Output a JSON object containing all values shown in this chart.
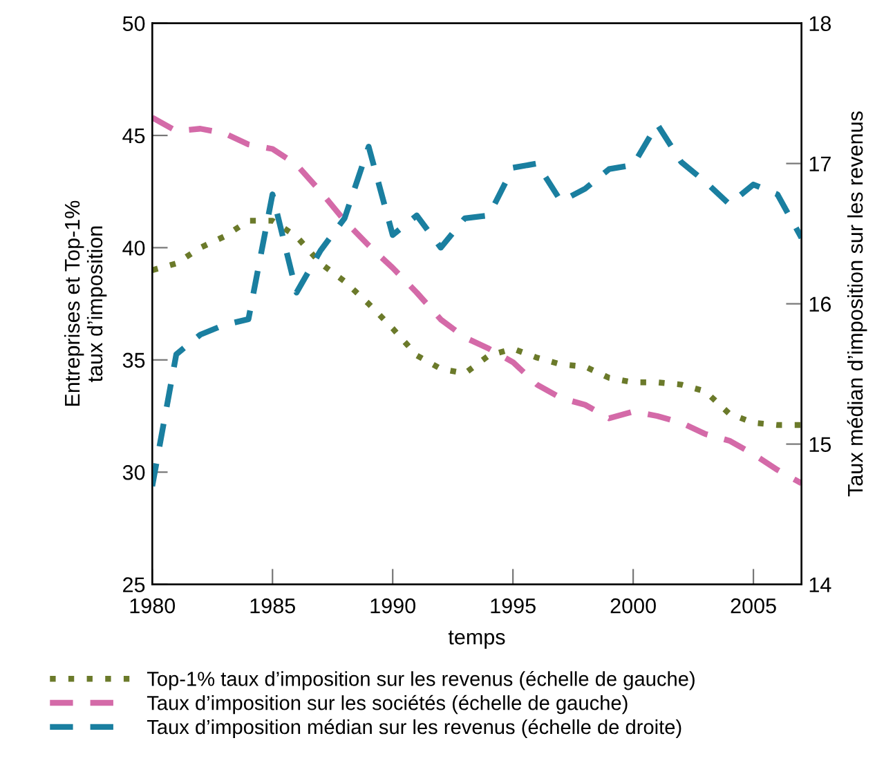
{
  "chart_data": {
    "type": "line",
    "xlabel": "temps",
    "ylabel": "Entreprises et Top-1%\ntaux d’imposition",
    "y2label": "Taux médian d’imposition sur les revenus",
    "x": [
      1980,
      1981,
      1982,
      1983,
      1984,
      1985,
      1986,
      1987,
      1988,
      1989,
      1990,
      1991,
      1992,
      1993,
      1994,
      1995,
      1996,
      1997,
      1998,
      1999,
      2000,
      2001,
      2002,
      2003,
      2004,
      2005,
      2006,
      2007
    ],
    "xlim": [
      1980,
      2007
    ],
    "xticks": [
      1980,
      1985,
      1990,
      1995,
      2000,
      2005
    ],
    "ylim": [
      25,
      50
    ],
    "yticks": [
      25,
      30,
      35,
      40,
      45,
      50
    ],
    "y2lim": [
      14,
      18
    ],
    "y2ticks": [
      14,
      15,
      16,
      17,
      18
    ],
    "grid": false,
    "legend": "bottom",
    "marker": "none",
    "series": [
      {
        "name": "Top-1% taux d’imposition sur les revenus (échelle de gauche)",
        "color": "#6b7a2a",
        "line_style": "dotted",
        "values": [
          39.0,
          39.3,
          40.0,
          40.5,
          41.2,
          41.2,
          40.5,
          39.3,
          38.5,
          37.5,
          36.4,
          35.2,
          34.6,
          34.4,
          35.2,
          35.5,
          35.1,
          34.8,
          34.7,
          34.2,
          34.0,
          34.0,
          33.9,
          33.6,
          32.6,
          32.2,
          32.1,
          32.1
        ]
      },
      {
        "name": "Taux d’imposition sur les sociétés (échelle de gauche)",
        "color": "#d46aa8",
        "line_style": "dashed",
        "values": [
          45.8,
          45.2,
          45.3,
          45.1,
          44.6,
          44.4,
          43.7,
          42.5,
          41.2,
          40.1,
          39.1,
          38.0,
          36.8,
          36.0,
          35.5,
          34.9,
          33.9,
          33.3,
          33.0,
          32.4,
          32.7,
          32.5,
          32.2,
          31.7,
          31.4,
          30.8,
          30.1,
          29.5
        ]
      },
      {
        "name": "Taux d’imposition médian sur les revenus (échelle de droite)",
        "color": "#1a7fa0",
        "line_style": "dashed",
        "axis": "y2",
        "values": [
          14.7,
          15.64,
          15.78,
          15.85,
          15.89,
          16.78,
          16.08,
          16.38,
          16.61,
          17.12,
          16.49,
          16.63,
          16.4,
          16.61,
          16.63,
          16.97,
          17.0,
          16.73,
          16.82,
          16.96,
          16.99,
          17.28,
          17.01,
          16.87,
          16.71,
          16.85,
          16.78,
          16.47
        ]
      }
    ]
  }
}
